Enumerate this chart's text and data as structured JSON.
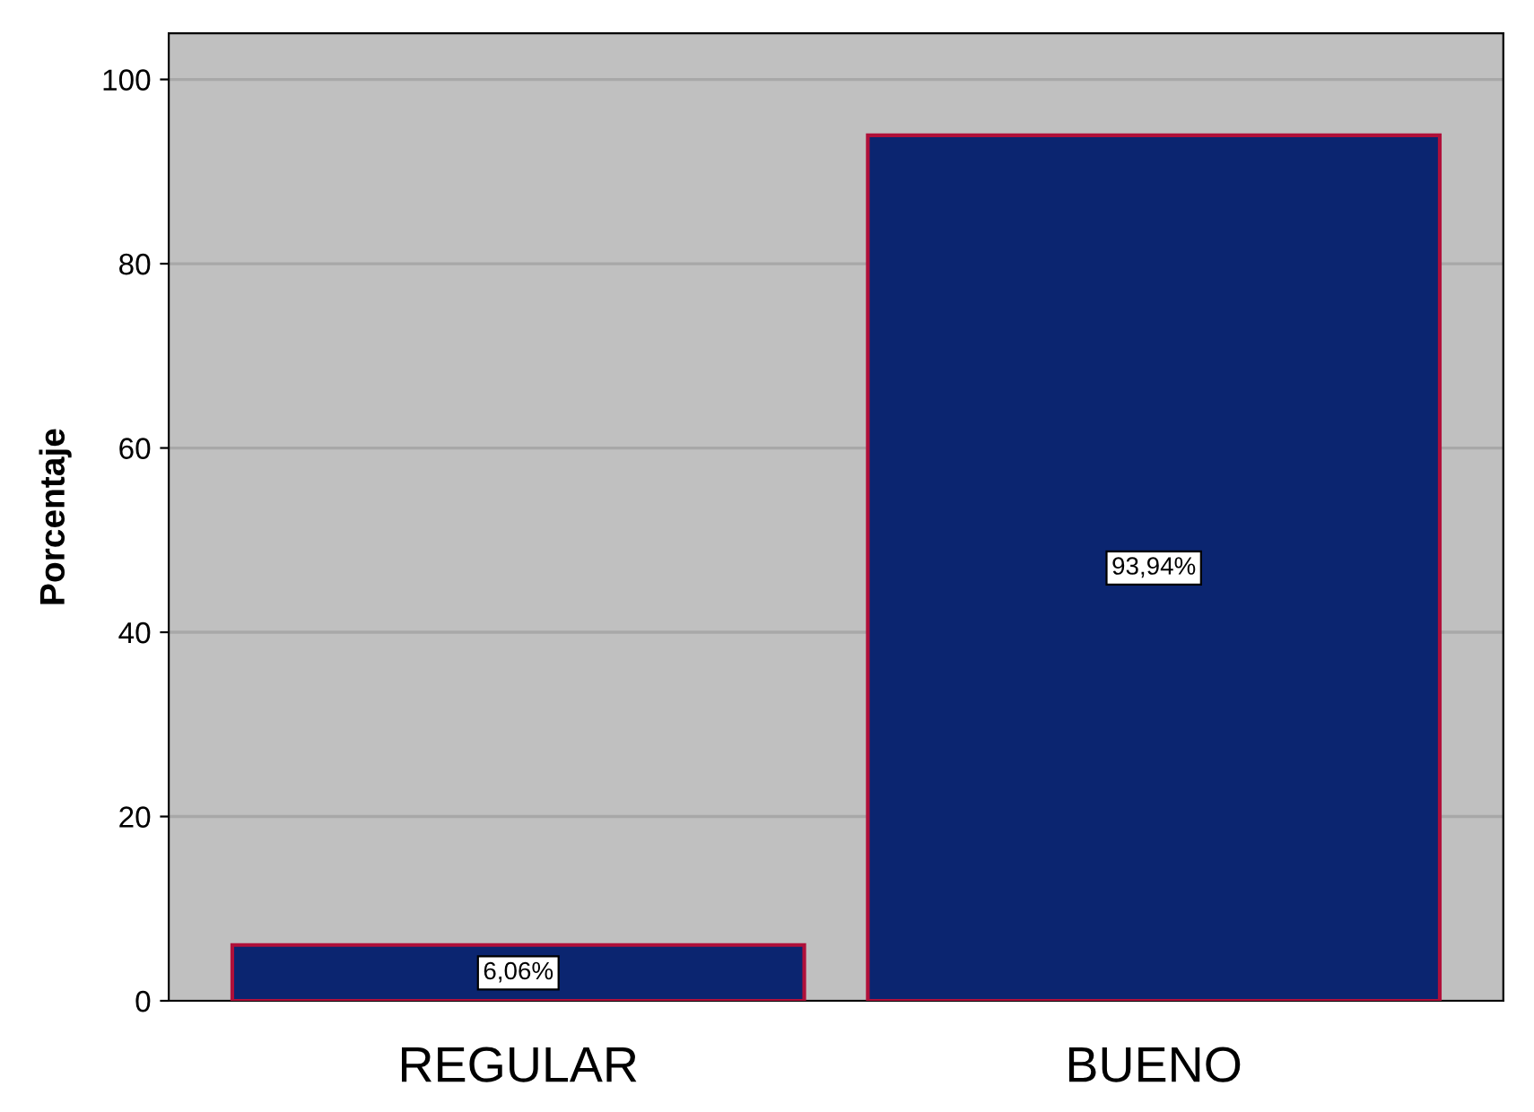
{
  "chart_data": {
    "type": "bar",
    "ylabel": "Porcentaje",
    "categories": [
      "REGULAR",
      "BUENO"
    ],
    "values": [
      6.06,
      93.94
    ],
    "value_labels": [
      "6,06%",
      "93,94%"
    ],
    "color": "#0b2570",
    "ylim": [
      0,
      105
    ],
    "yticks": [
      0,
      20,
      40,
      60,
      80,
      100
    ],
    "grid": "y"
  }
}
